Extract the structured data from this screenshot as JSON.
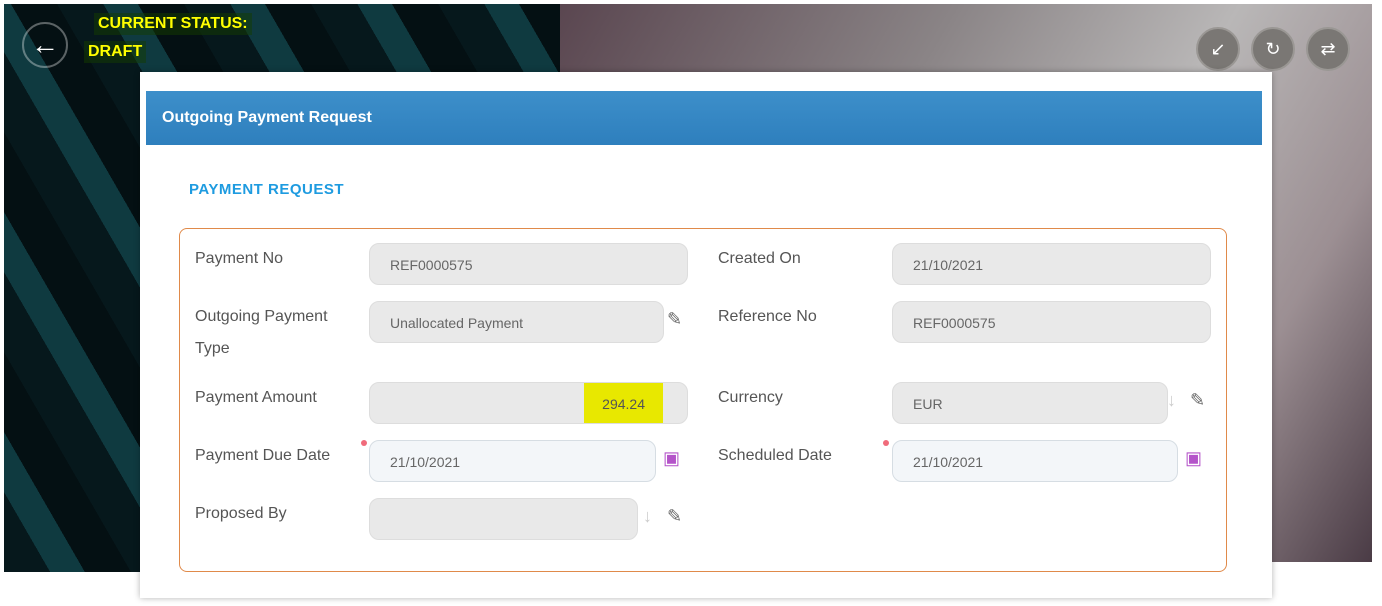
{
  "header": {
    "status_label": "CURRENT STATUS:",
    "status_value": "DRAFT"
  },
  "toolbar": {
    "buttons": [
      {
        "icon": "sd-card-import-icon"
      },
      {
        "icon": "sd-card-refresh-icon"
      },
      {
        "icon": "shuffle-icon"
      }
    ]
  },
  "card": {
    "title": "Outgoing Payment Request",
    "section": "PAYMENT REQUEST"
  },
  "fields": {
    "payment_no": {
      "label": "Payment No",
      "value": "REF0000575"
    },
    "created_on": {
      "label": "Created On",
      "value": "21/10/2021"
    },
    "payment_type": {
      "label": "Outgoing Payment Type",
      "value": "Unallocated Payment"
    },
    "reference_no": {
      "label": "Reference No",
      "value": "REF0000575"
    },
    "payment_amount": {
      "label": "Payment Amount",
      "value": "294.24"
    },
    "currency": {
      "label": "Currency",
      "value": "EUR"
    },
    "payment_due_date": {
      "label": "Payment Due Date",
      "value": "21/10/2021"
    },
    "scheduled_date": {
      "label": "Scheduled Date",
      "value": "21/10/2021"
    },
    "proposed_by": {
      "label": "Proposed By",
      "value": ""
    }
  },
  "colors": {
    "accent": "#1e9be0",
    "highlight": "#e8e800",
    "border": "#e08a4a",
    "required": "#f06b7b"
  }
}
